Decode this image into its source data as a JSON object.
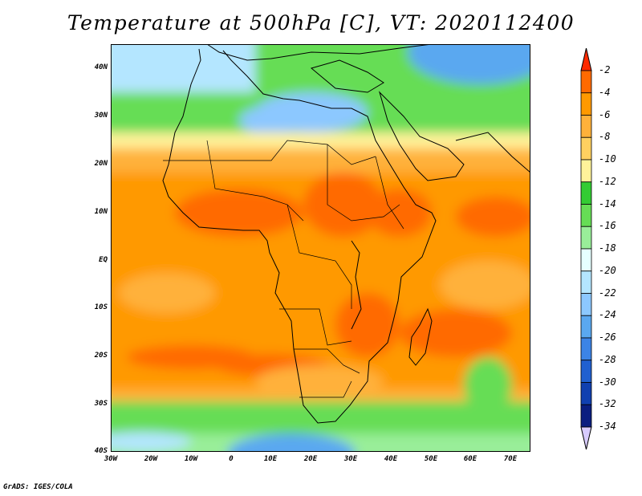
{
  "title": "Temperature at 500hPa [C], VT: 2020112400",
  "credit": "GrADS: IGES/COLA",
  "map": {
    "lon_ticks": [
      "30W",
      "20W",
      "10W",
      "0",
      "10E",
      "20E",
      "30E",
      "40E",
      "50E",
      "60E",
      "70E"
    ],
    "lat_ticks": [
      "40N",
      "30N",
      "20N",
      "10N",
      "EQ",
      "10S",
      "20S",
      "30S",
      "40S"
    ],
    "lon_range": [
      -30,
      75
    ],
    "lat_range": [
      -40,
      45
    ]
  },
  "colorbar": {
    "labels": [
      "-2",
      "-4",
      "-6",
      "-8",
      "-10",
      "-12",
      "-14",
      "-16",
      "-18",
      "-20",
      "-22",
      "-24",
      "-26",
      "-28",
      "-30",
      "-32",
      "-34"
    ],
    "colors": [
      "#ff3a00",
      "#ff6a00",
      "#ff9900",
      "#ffb13a",
      "#ffd060",
      "#fff29a",
      "#33cc33",
      "#66dd55",
      "#99ee99",
      "#e6ffff",
      "#b4e6ff",
      "#8cc8ff",
      "#5aa8f0",
      "#3c84e6",
      "#2060d0",
      "#1040b0",
      "#0a1e80"
    ],
    "top_color": "#ff2a00",
    "bottom_color": "#d8ccff"
  }
}
